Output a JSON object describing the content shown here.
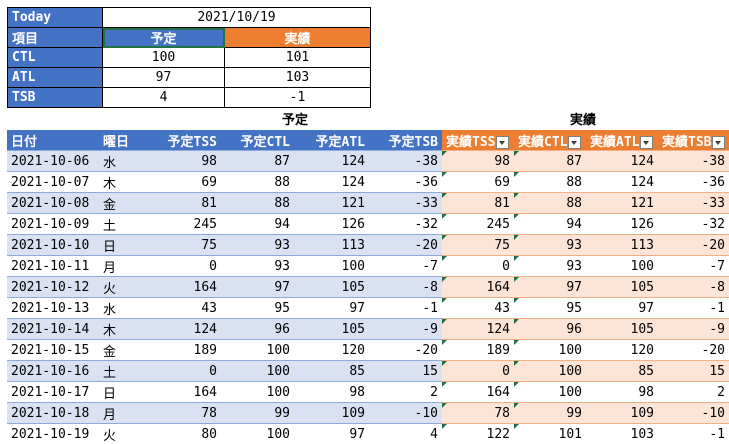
{
  "summary": {
    "today_label": "Today",
    "today_value": "2021/10/19",
    "item_label": "項目",
    "plan_label": "予定",
    "actual_label": "実績",
    "rows": [
      {
        "label": "CTL",
        "plan": "100",
        "actual": "101"
      },
      {
        "label": "ATL",
        "plan": "97",
        "actual": "103"
      },
      {
        "label": "TSB",
        "plan": "4",
        "actual": "-1"
      }
    ]
  },
  "group_labels": {
    "plan": "予定",
    "actual": "実績"
  },
  "columns": [
    "日付",
    "曜日",
    "予定TSS",
    "予定CTL",
    "予定ATL",
    "予定TSB",
    "実績TSS",
    "実績CTL",
    "実績ATL",
    "実績TSB"
  ],
  "rows": [
    {
      "date": "2021-10-06",
      "dow": "水",
      "pt": "98",
      "pc": "87",
      "pa": "124",
      "pb": "-38",
      "at": "98",
      "ac": "87",
      "aa": "124",
      "ab": "-38"
    },
    {
      "date": "2021-10-07",
      "dow": "木",
      "pt": "69",
      "pc": "88",
      "pa": "124",
      "pb": "-36",
      "at": "69",
      "ac": "88",
      "aa": "124",
      "ab": "-36"
    },
    {
      "date": "2021-10-08",
      "dow": "金",
      "pt": "81",
      "pc": "88",
      "pa": "121",
      "pb": "-33",
      "at": "81",
      "ac": "88",
      "aa": "121",
      "ab": "-33"
    },
    {
      "date": "2021-10-09",
      "dow": "土",
      "pt": "245",
      "pc": "94",
      "pa": "126",
      "pb": "-32",
      "at": "245",
      "ac": "94",
      "aa": "126",
      "ab": "-32"
    },
    {
      "date": "2021-10-10",
      "dow": "日",
      "pt": "75",
      "pc": "93",
      "pa": "113",
      "pb": "-20",
      "at": "75",
      "ac": "93",
      "aa": "113",
      "ab": "-20"
    },
    {
      "date": "2021-10-11",
      "dow": "月",
      "pt": "0",
      "pc": "93",
      "pa": "100",
      "pb": "-7",
      "at": "0",
      "ac": "93",
      "aa": "100",
      "ab": "-7"
    },
    {
      "date": "2021-10-12",
      "dow": "火",
      "pt": "164",
      "pc": "97",
      "pa": "105",
      "pb": "-8",
      "at": "164",
      "ac": "97",
      "aa": "105",
      "ab": "-8"
    },
    {
      "date": "2021-10-13",
      "dow": "水",
      "pt": "43",
      "pc": "95",
      "pa": "97",
      "pb": "-1",
      "at": "43",
      "ac": "95",
      "aa": "97",
      "ab": "-1"
    },
    {
      "date": "2021-10-14",
      "dow": "木",
      "pt": "124",
      "pc": "96",
      "pa": "105",
      "pb": "-9",
      "at": "124",
      "ac": "96",
      "aa": "105",
      "ab": "-9"
    },
    {
      "date": "2021-10-15",
      "dow": "金",
      "pt": "189",
      "pc": "100",
      "pa": "120",
      "pb": "-20",
      "at": "189",
      "ac": "100",
      "aa": "120",
      "ab": "-20"
    },
    {
      "date": "2021-10-16",
      "dow": "土",
      "pt": "0",
      "pc": "100",
      "pa": "85",
      "pb": "15",
      "at": "0",
      "ac": "100",
      "aa": "85",
      "ab": "15"
    },
    {
      "date": "2021-10-17",
      "dow": "日",
      "pt": "164",
      "pc": "100",
      "pa": "98",
      "pb": "2",
      "at": "164",
      "ac": "100",
      "aa": "98",
      "ab": "2"
    },
    {
      "date": "2021-10-18",
      "dow": "月",
      "pt": "78",
      "pc": "99",
      "pa": "109",
      "pb": "-10",
      "at": "78",
      "ac": "99",
      "aa": "109",
      "ab": "-10"
    },
    {
      "date": "2021-10-19",
      "dow": "火",
      "pt": "80",
      "pc": "100",
      "pa": "97",
      "pb": "4",
      "at": "122",
      "ac": "101",
      "aa": "103",
      "ab": "-1"
    }
  ],
  "colors": {
    "header_blue": "#4472c4",
    "header_orange": "#ed7d31",
    "band_blue": "#d9e1f2",
    "band_orange": "#fce4d6",
    "triangle_green": "#1e7145"
  },
  "icons": {
    "filter_dropdown": "chevron-down-icon",
    "comment_indicator": "green-triangle"
  }
}
